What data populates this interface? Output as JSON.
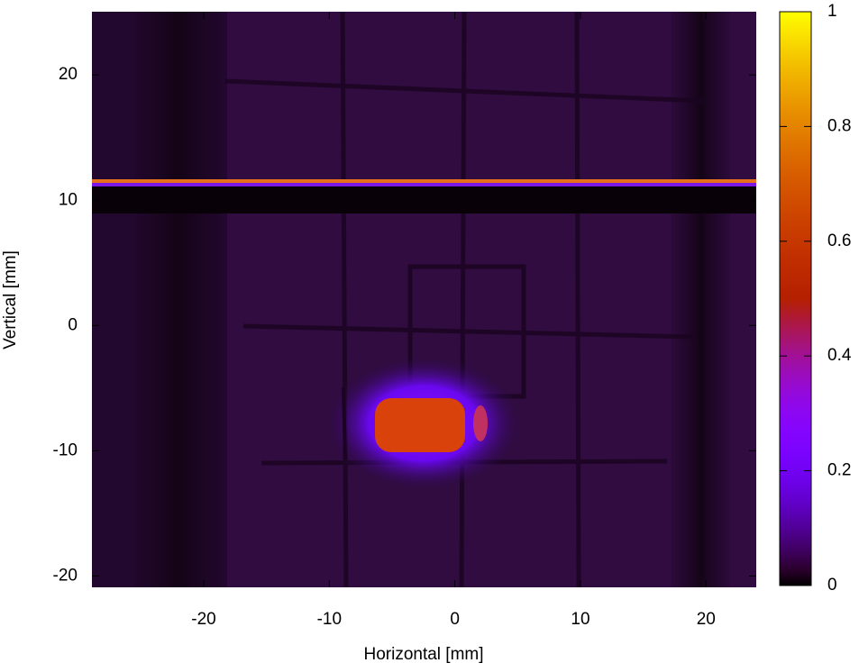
{
  "chart_data": {
    "type": "heatmap",
    "x_label": "Horizontal [mm]",
    "y_label": "Vertical [mm]",
    "xlim": [
      -28.9,
      24.0
    ],
    "ylim": [
      -20.9,
      25.05
    ],
    "xticks": [
      -20,
      -10,
      0,
      10,
      20
    ],
    "yticks": [
      -20,
      -10,
      0,
      10,
      20
    ],
    "colorbar": {
      "lim": [
        0,
        1
      ],
      "ticks": [
        0,
        0.2,
        0.4,
        0.6,
        0.8,
        1
      ],
      "palette": "black-blue-violet-yellow"
    }
  }
}
